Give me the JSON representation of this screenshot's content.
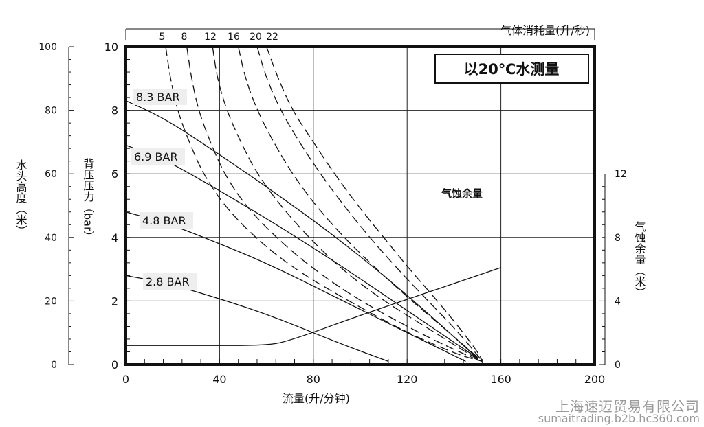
{
  "chart_data": {
    "type": "line",
    "title": "以20℃水测量",
    "xlabel": "流量(升/分钟)",
    "ylabel": "背压压力（bar）",
    "y2label": "水头高度（米）",
    "y3label": "气蚀余量（米）",
    "topaxis_label": "气体消耗量(升/秒)",
    "npsh_label": "气蚀余量",
    "xlim": [
      0,
      200
    ],
    "ylim": [
      0,
      10
    ],
    "head_lim": [
      0,
      100
    ],
    "npsh_lim": [
      0,
      12
    ],
    "xticks": [
      "0",
      "40",
      "80",
      "120",
      "160",
      "200"
    ],
    "yticks": [
      "0",
      "2",
      "4",
      "6",
      "8",
      "10"
    ],
    "head_ticks": [
      "0",
      "20",
      "40",
      "60",
      "80",
      "100"
    ],
    "npsh_ticks": [
      "0",
      "4",
      "8",
      "12"
    ],
    "air_ticks": [
      "5",
      "8",
      "12",
      "16",
      "20",
      "22"
    ],
    "grid": true,
    "pressure_curves": [
      {
        "name": "8.3 BAR",
        "x": [
          0,
          15,
          30,
          60,
          90,
          120,
          150
        ],
        "y": [
          8.3,
          7.8,
          7.1,
          5.6,
          4.0,
          2.2,
          0.2
        ]
      },
      {
        "name": "6.9 BAR",
        "x": [
          0,
          15,
          30,
          60,
          90,
          120,
          150
        ],
        "y": [
          6.9,
          6.5,
          5.9,
          4.6,
          3.2,
          1.7,
          0.2
        ]
      },
      {
        "name": "4.8 BAR",
        "x": [
          0,
          15,
          30,
          60,
          90,
          120,
          145
        ],
        "y": [
          4.8,
          4.5,
          4.1,
          3.2,
          2.1,
          1.0,
          0.1
        ]
      },
      {
        "name": "2.8 BAR",
        "x": [
          0,
          15,
          30,
          60,
          90,
          112
        ],
        "y": [
          2.8,
          2.6,
          2.3,
          1.6,
          0.7,
          0.1
        ]
      }
    ],
    "air_consumption_curves": [
      {
        "name": "5",
        "x": [
          17,
          19,
          22,
          27,
          33,
          42,
          55,
          72,
          95,
          120,
          142,
          152
        ],
        "y": [
          10,
          9,
          8,
          7,
          6,
          5,
          4,
          3,
          2,
          1,
          0.3,
          0.1
        ]
      },
      {
        "name": "8",
        "x": [
          26,
          28,
          31,
          36,
          42,
          51,
          64,
          80,
          100,
          125,
          145,
          152
        ],
        "y": [
          10,
          9,
          8,
          7,
          6,
          5,
          4,
          3,
          2,
          1,
          0.3,
          0.1
        ]
      },
      {
        "name": "12",
        "x": [
          37,
          39,
          43,
          49,
          56,
          66,
          78,
          92,
          110,
          132,
          147,
          152
        ],
        "y": [
          10,
          9,
          8,
          7,
          6,
          5,
          4,
          3,
          2,
          1,
          0.3,
          0.1
        ]
      },
      {
        "name": "16",
        "x": [
          48,
          51,
          56,
          63,
          71,
          81,
          93,
          107,
          122,
          138,
          149,
          152
        ],
        "y": [
          10,
          9,
          8,
          7,
          6,
          5,
          4,
          3,
          2,
          1,
          0.3,
          0.1
        ]
      },
      {
        "name": "20",
        "x": [
          56,
          60,
          66,
          74,
          83,
          93,
          104,
          116,
          129,
          142,
          150,
          152
        ],
        "y": [
          10,
          9,
          8,
          7,
          6,
          5,
          4,
          3,
          2,
          1,
          0.3,
          0.1
        ]
      },
      {
        "name": "22",
        "x": [
          60,
          65,
          71,
          80,
          89,
          99,
          110,
          121,
          133,
          144,
          151,
          152
        ],
        "y": [
          10,
          9,
          8,
          7,
          6,
          5,
          4,
          3,
          2,
          1,
          0.3,
          0.1
        ]
      }
    ],
    "npsh_curve": {
      "x": [
        0,
        30,
        60,
        70,
        100,
        130,
        160
      ],
      "npsh": [
        1.2,
        1.2,
        1.2,
        1.5,
        3.1,
        4.6,
        6.1
      ]
    }
  },
  "watermark": {
    "line1": "上海速迈贸易有限公司",
    "line2": "sumaitrading.b2b.hc360.com"
  }
}
